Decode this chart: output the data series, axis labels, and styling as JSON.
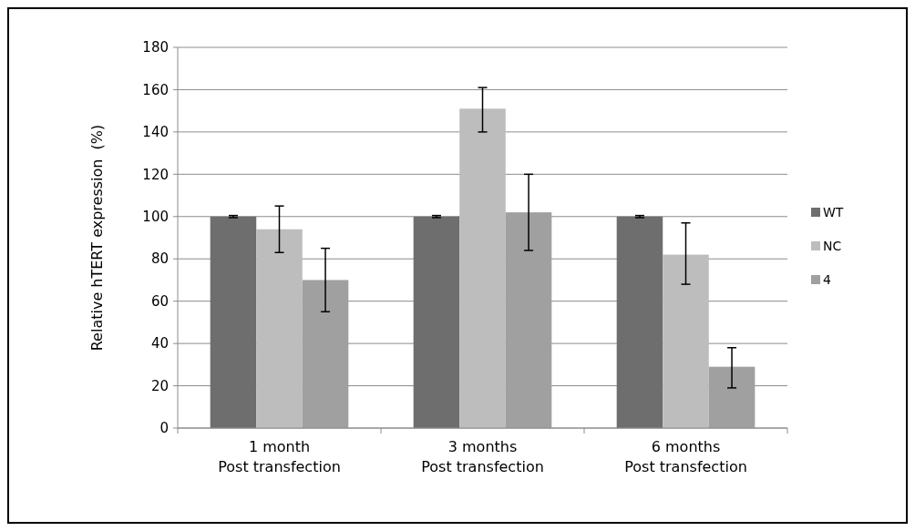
{
  "chart_data": {
    "type": "bar",
    "ylabel": "Relative hTERT expression  (%)",
    "categories": [
      "1 month\nPost transfection",
      "3 months\nPost transfection",
      "6 months\nPost transfection"
    ],
    "series": [
      {
        "name": "WT",
        "color": "#6e6e6e",
        "values": [
          100,
          100,
          100
        ],
        "errors": [
          0.5,
          0.5,
          0.5
        ]
      },
      {
        "name": "NC",
        "color": "#bdbdbd",
        "values": [
          94,
          151,
          82
        ],
        "errors": [
          [
            83,
            105
          ],
          [
            140,
            161
          ],
          [
            68,
            97
          ]
        ]
      },
      {
        "name": "4",
        "color": "#a0a0a0",
        "values": [
          70,
          102,
          29
        ],
        "errors": [
          [
            55,
            85
          ],
          [
            84,
            120
          ],
          [
            19,
            38
          ]
        ]
      }
    ],
    "ylim": [
      0,
      180
    ],
    "yticks": [
      0,
      20,
      40,
      60,
      80,
      100,
      120,
      140,
      160,
      180
    ],
    "grid": "y",
    "legend": "right"
  }
}
